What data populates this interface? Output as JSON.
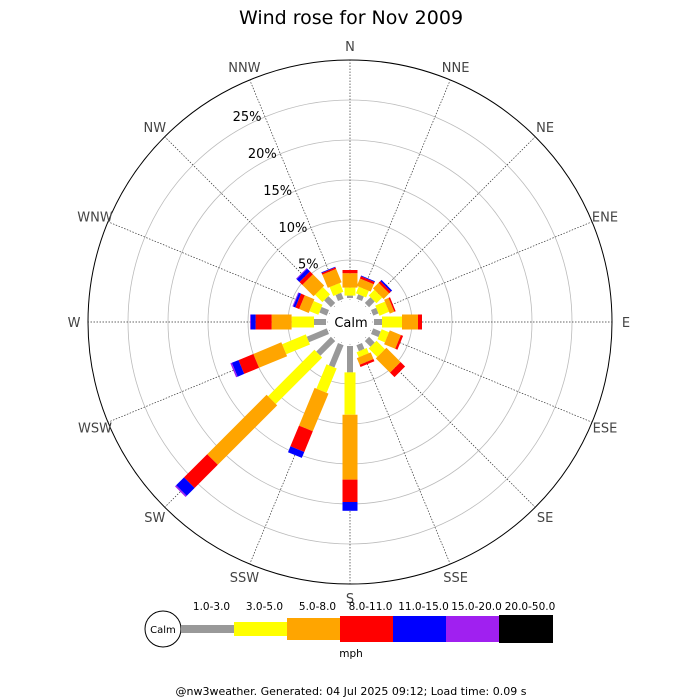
{
  "chart_data": {
    "type": "wind-rose",
    "title": "Wind rose for Nov 2009",
    "directions": [
      "N",
      "NNE",
      "NE",
      "ENE",
      "E",
      "ESE",
      "SE",
      "SSE",
      "S",
      "SSW",
      "SW",
      "WSW",
      "W",
      "WNW",
      "NW",
      "NNW"
    ],
    "radial_ticks": [
      "5%",
      "10%",
      "15%",
      "20%",
      "25%"
    ],
    "radial_values": [
      5,
      10,
      15,
      20,
      25
    ],
    "rmax": 30,
    "calm_label": "Calm",
    "unit": "mph",
    "bins": [
      {
        "label": "1.0-3.0",
        "color": "#999999"
      },
      {
        "label": "3.0-5.0",
        "color": "#ffff00"
      },
      {
        "label": "5.0-8.0",
        "color": "#ffa500"
      },
      {
        "label": "8.0-11.0",
        "color": "#ff0000"
      },
      {
        "label": "11.0-15.0",
        "color": "#0000ff"
      },
      {
        "label": "15.0-20.0",
        "color": "#a020f0"
      },
      {
        "label": "20.0-50.0",
        "color": "#000000"
      }
    ],
    "cumulative": [
      [
        0.3,
        1.3,
        3.1,
        3.5,
        3.5,
        3.5,
        3.5
      ],
      [
        0.6,
        1.5,
        2.5,
        2.8,
        2.9,
        2.9,
        2.9
      ],
      [
        1.0,
        2.0,
        3.0,
        3.3,
        3.5,
        3.5,
        3.5
      ],
      [
        0.7,
        2.0,
        2.6,
        2.8,
        2.8,
        2.8,
        2.8
      ],
      [
        1.0,
        3.5,
        5.5,
        6.0,
        6.0,
        6.0,
        6.0
      ],
      [
        1.0,
        2.0,
        3.5,
        3.8,
        3.8,
        3.8,
        3.8
      ],
      [
        1.0,
        2.5,
        5.0,
        5.8,
        5.8,
        5.8,
        5.8
      ],
      [
        0.8,
        1.5,
        2.4,
        2.7,
        2.7,
        2.7,
        2.7
      ],
      [
        3.3,
        8.6,
        16.7,
        19.5,
        20.6,
        20.6,
        20.6
      ],
      [
        3.0,
        6.3,
        11.4,
        14.2,
        15.0,
        15.0,
        15.0
      ],
      [
        2.6,
        10.8,
        21.3,
        25.4,
        26.8,
        27.0,
        27.0
      ],
      [
        2.7,
        5.9,
        9.7,
        11.7,
        12.6,
        12.8,
        12.8
      ],
      [
        1.5,
        4.3,
        6.8,
        8.8,
        9.4,
        9.5,
        9.5
      ],
      [
        1.0,
        2.2,
        3.5,
        4.0,
        4.3,
        4.4,
        4.4
      ],
      [
        1.2,
        2.5,
        4.5,
        5.0,
        5.5,
        5.6,
        5.6
      ],
      [
        0.8,
        2.0,
        3.8,
        4.0,
        4.1,
        4.1,
        4.1
      ]
    ]
  },
  "footer": "@nw3weather. Generated: 04 Jul 2025 09:12; Load time: 0.09 s"
}
